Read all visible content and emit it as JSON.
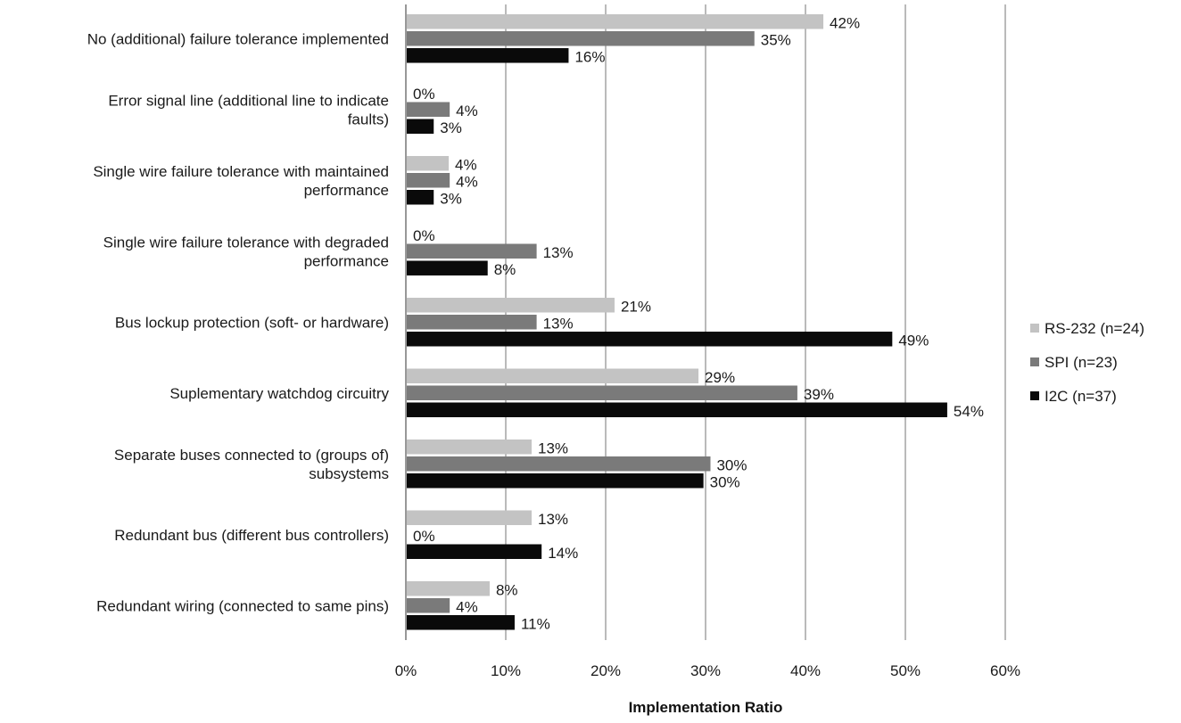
{
  "chart_data": {
    "type": "bar",
    "orientation": "horizontal",
    "title": "",
    "xlabel": "Implementation Ratio",
    "ylabel": "",
    "xlim": [
      0,
      60
    ],
    "x_ticks": [
      "0%",
      "10%",
      "20%",
      "30%",
      "40%",
      "50%",
      "60%"
    ],
    "grid": "vertical",
    "legend_position": "right",
    "categories": [
      [
        "No (additional) failure tolerance implemented"
      ],
      [
        "Error signal line (additional line to indicate",
        "faults)"
      ],
      [
        "Single wire failure tolerance with maintained",
        "performance"
      ],
      [
        "Single wire failure tolerance with degraded",
        "performance"
      ],
      [
        "Bus lockup protection (soft- or hardware)"
      ],
      [
        "Suplementary watchdog circuitry"
      ],
      [
        "Separate buses connected to (groups of)",
        "subsystems"
      ],
      [
        "Redundant bus (different bus controllers)"
      ],
      [
        "Redundant wiring (connected to same pins)"
      ]
    ],
    "series": [
      {
        "name": "RS-232 (n=24)",
        "color": "#c3c3c3",
        "values": [
          41.7,
          0,
          4.2,
          0,
          20.8,
          29.2,
          12.5,
          12.5,
          8.3
        ],
        "labels": [
          "42%",
          "0%",
          "4%",
          "0%",
          "21%",
          "29%",
          "13%",
          "13%",
          "8%"
        ]
      },
      {
        "name": "SPI (n=23)",
        "color": "#7a7a7a",
        "values": [
          34.8,
          4.3,
          4.3,
          13.0,
          13.0,
          39.1,
          30.4,
          0,
          4.3
        ],
        "labels": [
          "35%",
          "4%",
          "4%",
          "13%",
          "13%",
          "39%",
          "30%",
          "0%",
          "4%"
        ]
      },
      {
        "name": "I2C (n=37)",
        "color": "#0a0a0a",
        "values": [
          16.2,
          2.7,
          2.7,
          8.1,
          48.6,
          54.1,
          29.7,
          13.5,
          10.8
        ],
        "labels": [
          "16%",
          "3%",
          "3%",
          "8%",
          "49%",
          "54%",
          "30%",
          "14%",
          "11%"
        ]
      }
    ]
  }
}
